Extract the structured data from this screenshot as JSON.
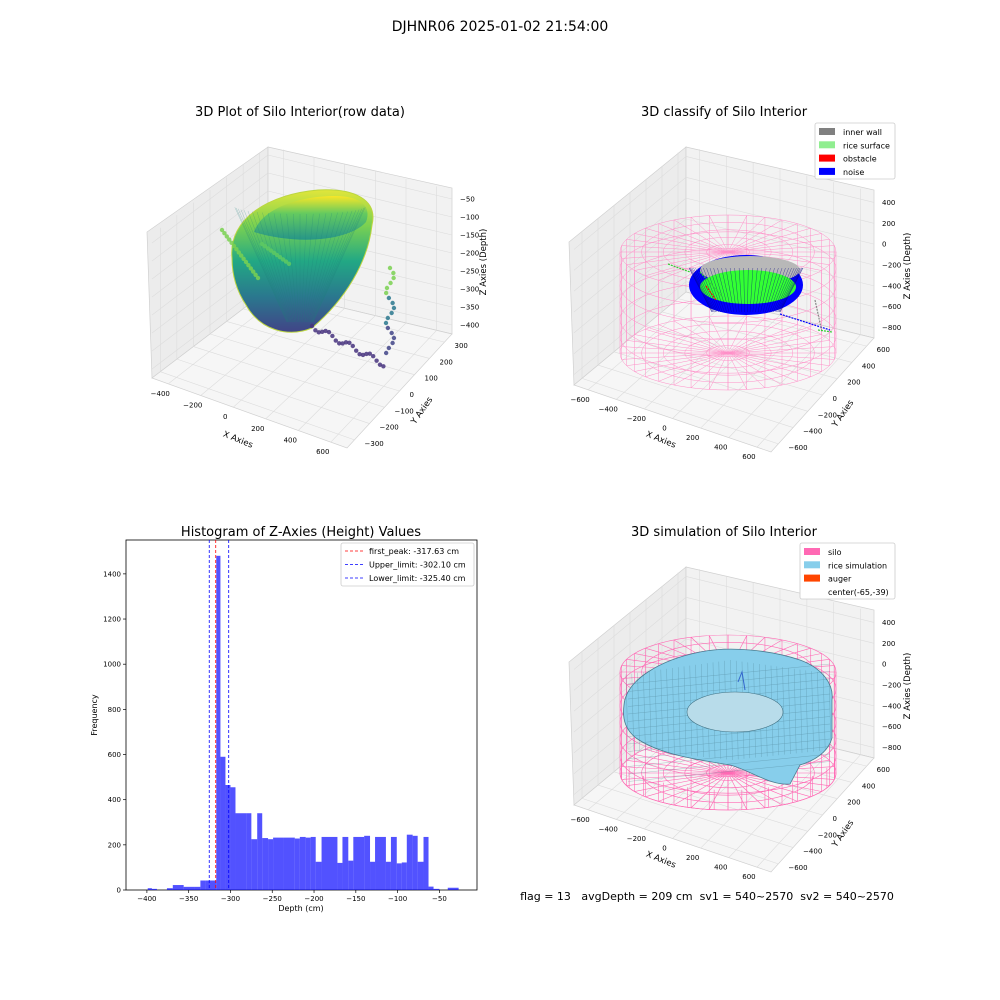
{
  "suptitle": "DJHNR06 2025-01-02 21:54:00",
  "panels": {
    "raw": {
      "title": "3D Plot of Silo Interior(row data)",
      "xlabel": "X Axies",
      "ylabel": "Y Axies",
      "zlabel": "Z Axies (Depth)",
      "xticks": [
        "−400",
        "−200",
        "0",
        "200",
        "400",
        "600"
      ],
      "yticks": [
        "−300",
        "−200",
        "−100",
        "0",
        "100",
        "200",
        "300"
      ],
      "zticks": [
        "−50",
        "−100",
        "−150",
        "−200",
        "−250",
        "−300",
        "−350",
        "−400"
      ]
    },
    "classify": {
      "title": "3D classify of Silo Interior",
      "xlabel": "X Axies",
      "ylabel": "Y Axies",
      "zlabel": "Z Axies (Depth)",
      "xticks": [
        "−600",
        "−400",
        "−200",
        "0",
        "200",
        "400",
        "600"
      ],
      "yticks": [
        "−600",
        "−400",
        "−200",
        "0",
        "200",
        "400",
        "600"
      ],
      "zticks": [
        "400",
        "200",
        "0",
        "−200",
        "−400",
        "−600",
        "−800"
      ],
      "legend": [
        {
          "label": "inner wall",
          "color": "#808080"
        },
        {
          "label": "rice surface",
          "color": "#90ee90"
        },
        {
          "label": "obstacle",
          "color": "#ff0000"
        },
        {
          "label": "noise",
          "color": "#0000ff"
        }
      ]
    },
    "simulation": {
      "title": "3D simulation of Silo Interior",
      "xlabel": "X Axies",
      "ylabel": "Y Axies",
      "zlabel": "Z Axies (Depth)",
      "xticks": [
        "−600",
        "−400",
        "−200",
        "0",
        "200",
        "400",
        "600"
      ],
      "yticks": [
        "−600",
        "−400",
        "−200",
        "0",
        "200",
        "400",
        "600"
      ],
      "zticks": [
        "400",
        "200",
        "0",
        "−200",
        "−400",
        "−600",
        "−800"
      ],
      "legend": [
        {
          "label": "silo",
          "color": "#ff69b4"
        },
        {
          "label": "rice simulation",
          "color": "#87ceeb"
        },
        {
          "label": "auger",
          "color": "#ff4500"
        },
        {
          "label": "center(-65,-39)",
          "color": ""
        }
      ],
      "status": "flag = 13   avgDepth = 209 cm  sv1 = 540~2570  sv2 = 540~2570"
    }
  },
  "chart_data": {
    "type": "bar",
    "title": "Histogram of Z-Axies (Height) Values",
    "xlabel": "Depth (cm)",
    "ylabel": "Frequency",
    "xlim": [
      -425,
      -5
    ],
    "ylim": [
      0,
      1550
    ],
    "xticks": [
      -400,
      -350,
      -300,
      -250,
      -200,
      -150,
      -100,
      -50
    ],
    "yticks": [
      0,
      200,
      400,
      600,
      800,
      1000,
      1200,
      1400
    ],
    "bar_color": "#0000ff",
    "bins": [
      [
        -399,
        -394,
        8
      ],
      [
        -394,
        -388,
        5
      ],
      [
        -376,
        -369,
        8
      ],
      [
        -369,
        -356,
        22
      ],
      [
        -356,
        -343,
        14
      ],
      [
        -343,
        -336,
        14
      ],
      [
        -336,
        -330,
        42
      ],
      [
        -330,
        -317,
        42
      ],
      [
        -317,
        -312,
        1480
      ],
      [
        -312,
        -306,
        590
      ],
      [
        -306,
        -300,
        465
      ],
      [
        -300,
        -294,
        455
      ],
      [
        -294,
        -281,
        340
      ],
      [
        -281,
        -275,
        340
      ],
      [
        -275,
        -268,
        225
      ],
      [
        -268,
        -262,
        340
      ],
      [
        -262,
        -255,
        230
      ],
      [
        -255,
        -249,
        225
      ],
      [
        -249,
        -236,
        232
      ],
      [
        -236,
        -223,
        232
      ],
      [
        -223,
        -217,
        228
      ],
      [
        -217,
        -210,
        235
      ],
      [
        -210,
        -204,
        232
      ],
      [
        -204,
        -198,
        235
      ],
      [
        -198,
        -191,
        125
      ],
      [
        -191,
        -172,
        235
      ],
      [
        -172,
        -166,
        120
      ],
      [
        -166,
        -159,
        235
      ],
      [
        -159,
        -153,
        130
      ],
      [
        -153,
        -140,
        235
      ],
      [
        -140,
        -133,
        240
      ],
      [
        -133,
        -127,
        125
      ],
      [
        -127,
        -114,
        235
      ],
      [
        -114,
        -108,
        125
      ],
      [
        -108,
        -101,
        235
      ],
      [
        -101,
        -95,
        118
      ],
      [
        -95,
        -89,
        122
      ],
      [
        -89,
        -82,
        245
      ],
      [
        -82,
        -76,
        240
      ],
      [
        -76,
        -69,
        125
      ],
      [
        -69,
        -63,
        235
      ],
      [
        -63,
        -57,
        15
      ],
      [
        -57,
        -50,
        5
      ],
      [
        -40,
        -27,
        10
      ]
    ],
    "vlines": [
      {
        "name": "first_peak",
        "value": -317.63,
        "label": "first_peak: -317.63 cm",
        "color": "#ff0000"
      },
      {
        "name": "Upper_limit",
        "value": -302.1,
        "label": "Upper_limit: -302.10 cm",
        "color": "#0000ff"
      },
      {
        "name": "Lower_limit",
        "value": -325.4,
        "label": "Lower_limit: -325.40 cm",
        "color": "#0000ff"
      }
    ]
  }
}
